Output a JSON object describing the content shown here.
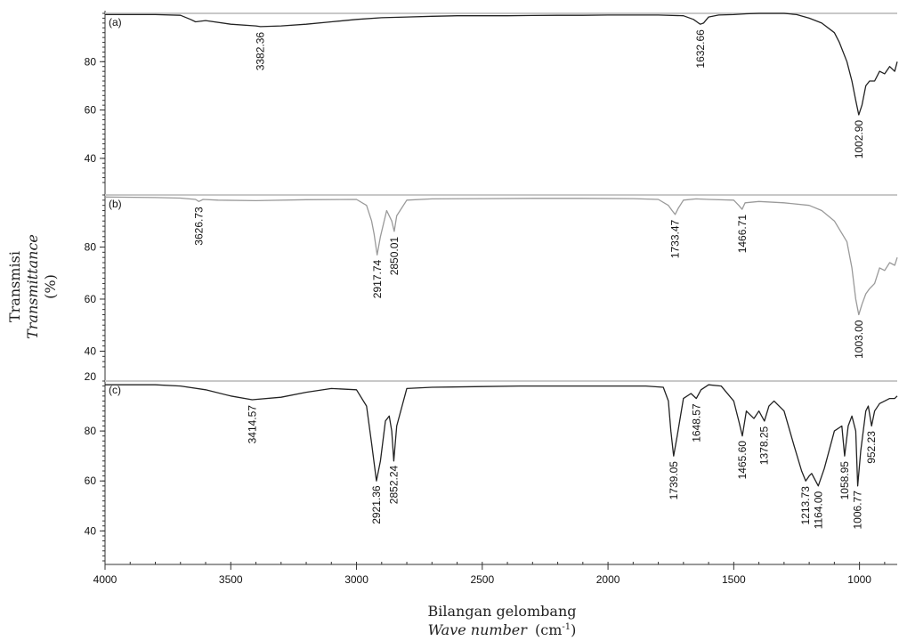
{
  "chart_data": {
    "type": "line",
    "ylabel": {
      "line1": "Transmisi",
      "line2": "Transmittance",
      "line3": "(%)"
    },
    "xlabel": {
      "line1": "Bilangan gelombang",
      "line2_italic": "Wave number",
      "line2_unit": "(cm",
      "line2_sup": "-1",
      "line2_close": ")"
    },
    "xlim": [
      4000,
      850
    ],
    "x_ticks": [
      4000,
      3500,
      3000,
      2500,
      2000,
      1500,
      1000
    ],
    "x_tick_labels": [
      "4000",
      "3500",
      "3000",
      "2500",
      "2000",
      "1500",
      "1000"
    ],
    "grid": false,
    "panels": [
      {
        "tag": "(a)",
        "color": "#222222",
        "ylim": [
          30,
          100
        ],
        "y_ticks": [
          40,
          60,
          80
        ],
        "y_tick_labels": [
          "40",
          "60",
          "80"
        ],
        "x": [
          4000,
          3800,
          3700,
          3660,
          3640,
          3600,
          3500,
          3400,
          3382,
          3300,
          3200,
          3100,
          3000,
          2900,
          2800,
          2700,
          2600,
          2500,
          2400,
          2300,
          2200,
          2100,
          2000,
          1900,
          1800,
          1700,
          1660,
          1640,
          1633,
          1620,
          1600,
          1560,
          1500,
          1450,
          1400,
          1350,
          1300,
          1250,
          1200,
          1150,
          1100,
          1080,
          1050,
          1030,
          1015,
          1003,
          990,
          975,
          960,
          940,
          920,
          900,
          880,
          860,
          850
        ],
        "y": [
          99.5,
          99.5,
          99.2,
          97.5,
          96.5,
          97,
          95.5,
          94.8,
          94.5,
          94.8,
          95.5,
          96.5,
          97.5,
          98.2,
          98.5,
          98.8,
          99,
          99,
          99,
          99.1,
          99.2,
          99.2,
          99.3,
          99.3,
          99.3,
          99,
          97.5,
          96,
          95.5,
          96,
          98.5,
          99.3,
          99.5,
          99.8,
          100,
          100,
          100,
          99.5,
          98,
          96,
          92,
          88,
          80,
          72,
          64,
          58,
          62,
          70,
          72,
          72,
          76,
          75,
          78,
          76,
          80
        ],
        "peaks": [
          {
            "label": "3382.36",
            "x": 3382.36
          },
          {
            "label": "1632.66",
            "x": 1632.66
          },
          {
            "label": "1002.90",
            "x": 1002.9
          }
        ]
      },
      {
        "tag": "(b)",
        "color": "#9a9a9a",
        "ylim": [
          34,
          100
        ],
        "y_ticks": [
          40,
          60,
          80
        ],
        "y_tick_labels": [
          "40",
          "60",
          "80"
        ],
        "x": [
          4000,
          3800,
          3700,
          3640,
          3627,
          3610,
          3550,
          3400,
          3200,
          3000,
          2960,
          2940,
          2930,
          2918,
          2905,
          2880,
          2860,
          2850,
          2840,
          2800,
          2700,
          2500,
          2300,
          2100,
          1900,
          1800,
          1760,
          1745,
          1733,
          1720,
          1700,
          1650,
          1600,
          1500,
          1480,
          1467,
          1455,
          1400,
          1300,
          1200,
          1150,
          1100,
          1050,
          1030,
          1015,
          1003,
          990,
          975,
          960,
          940,
          920,
          900,
          880,
          860,
          850
        ],
        "y": [
          99.2,
          99,
          98.8,
          98.3,
          97.5,
          98.3,
          98,
          97.8,
          98.2,
          98.3,
          96,
          90,
          85,
          77,
          84,
          94,
          90,
          86,
          92,
          98,
          98.5,
          98.6,
          98.7,
          98.7,
          98.6,
          98.3,
          96,
          94,
          92.5,
          95,
          98,
          98.5,
          98.3,
          98,
          96,
          94.5,
          97,
          97.5,
          97,
          96,
          94,
          90,
          82,
          72,
          60,
          54,
          58,
          62,
          64,
          66,
          72,
          71,
          74,
          73,
          76
        ],
        "peaks": [
          {
            "label": "3626.73",
            "x": 3626.73
          },
          {
            "label": "2917.74",
            "x": 2917.74
          },
          {
            "label": "2850.01",
            "x": 2850.01
          },
          {
            "label": "1733.47",
            "x": 1733.47
          },
          {
            "label": "1466.71",
            "x": 1466.71
          },
          {
            "label": "1003.00",
            "x": 1003.0
          }
        ]
      },
      {
        "tag": "(c)",
        "color": "#222222",
        "ylim": [
          28,
          100
        ],
        "y_ticks": [
          40,
          60,
          80
        ],
        "y_tick_labels": [
          "40",
          "60",
          "80"
        ],
        "extra_tick": {
          "value": 20,
          "label": "20"
        },
        "x": [
          4000,
          3800,
          3700,
          3600,
          3500,
          3415,
          3300,
          3200,
          3100,
          3000,
          2960,
          2940,
          2921,
          2905,
          2885,
          2870,
          2860,
          2852,
          2840,
          2800,
          2700,
          2500,
          2350,
          2200,
          2000,
          1850,
          1780,
          1760,
          1750,
          1739,
          1725,
          1700,
          1670,
          1649,
          1630,
          1600,
          1550,
          1500,
          1480,
          1466,
          1450,
          1420,
          1400,
          1378,
          1360,
          1340,
          1300,
          1260,
          1230,
          1214,
          1200,
          1190,
          1164,
          1140,
          1100,
          1070,
          1059,
          1045,
          1030,
          1015,
          1007,
          995,
          975,
          965,
          952,
          940,
          920,
          900,
          880,
          860,
          850
        ],
        "y": [
          98.5,
          98.5,
          98,
          96.5,
          94,
          92.5,
          93.5,
          95.5,
          97,
          96.5,
          90,
          75,
          60,
          68,
          84,
          86,
          80,
          68,
          82,
          97,
          97.5,
          97.8,
          98,
          98,
          98,
          98,
          97.5,
          92,
          80,
          70,
          78,
          93,
          95,
          93,
          96.5,
          98.5,
          98,
          92,
          84,
          78,
          88,
          85,
          88,
          84,
          90,
          92,
          88,
          74,
          64,
          60,
          62,
          63,
          58,
          65,
          80,
          82,
          70,
          82,
          86,
          80,
          58,
          72,
          88,
          90,
          82,
          88,
          91,
          92,
          93,
          93,
          94
        ],
        "peaks": [
          {
            "label": "3414.57",
            "x": 3414.57
          },
          {
            "label": "2921.36",
            "x": 2921.36
          },
          {
            "label": "2852.24",
            "x": 2852.24
          },
          {
            "label": "1739.05",
            "x": 1739.05
          },
          {
            "label": "1648.57",
            "x": 1648.57
          },
          {
            "label": "1465.60",
            "x": 1465.6
          },
          {
            "label": "1378.25",
            "x": 1378.25
          },
          {
            "label": "1213.73",
            "x": 1213.73
          },
          {
            "label": "1164.00",
            "x": 1164.0
          },
          {
            "label": "1058.95",
            "x": 1058.95
          },
          {
            "label": "1006.77",
            "x": 1006.77
          },
          {
            "label": "952.23",
            "x": 952.23
          }
        ]
      }
    ]
  }
}
